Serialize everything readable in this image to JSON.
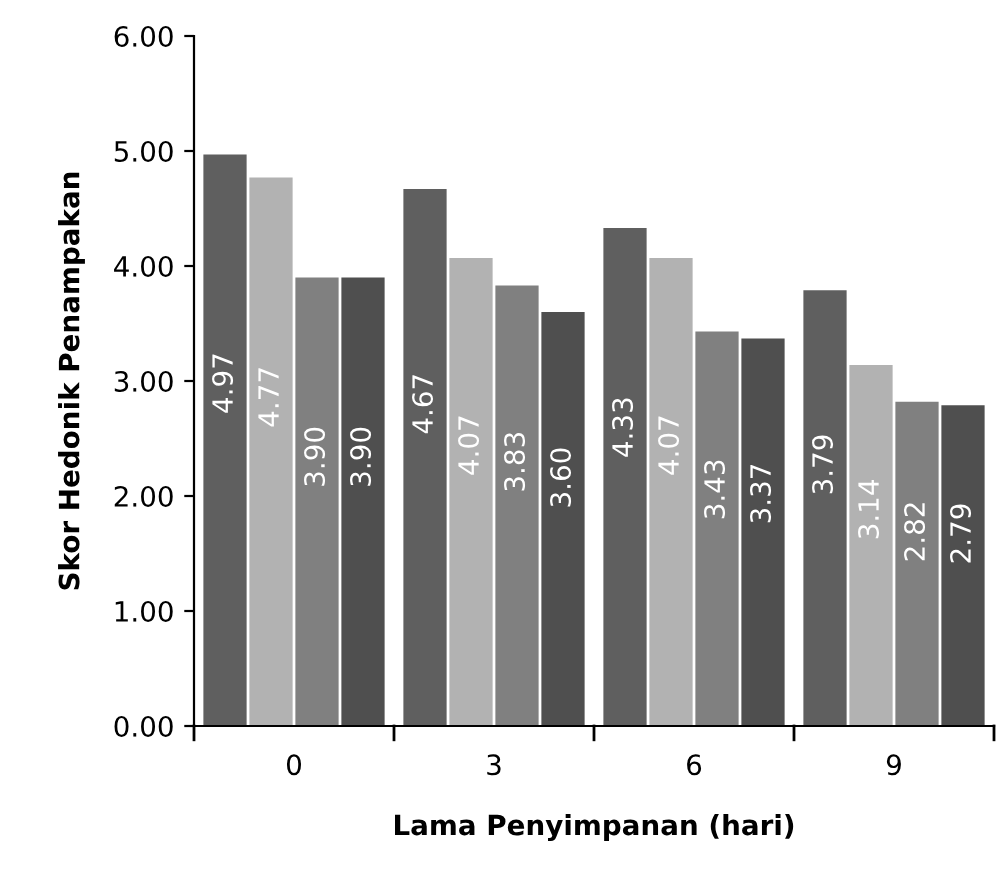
{
  "chart_data": {
    "type": "bar",
    "xlabel": "Lama Penyimpanan (hari)",
    "ylabel": "Skor Hedonik Penampakan",
    "categories": [
      "0",
      "3",
      "6",
      "9"
    ],
    "series": [
      {
        "color": "#5f5f5f",
        "values": [
          4.97,
          4.67,
          4.33,
          3.79
        ],
        "value_labels": [
          "4.97",
          "4.67",
          "4.33",
          "3.79"
        ]
      },
      {
        "color": "#b2b2b2",
        "values": [
          4.77,
          4.07,
          4.07,
          3.14
        ],
        "value_labels": [
          "4.77",
          "4.07",
          "4.07",
          "3.14"
        ]
      },
      {
        "color": "#808080",
        "values": [
          3.9,
          3.83,
          3.43,
          2.82
        ],
        "value_labels": [
          "3.90",
          "3.83",
          "3.43",
          "2.82"
        ]
      },
      {
        "color": "#4f4f4f",
        "values": [
          3.9,
          3.6,
          3.37,
          2.79
        ],
        "value_labels": [
          "3.90",
          "3.60",
          "3.37",
          "2.79"
        ]
      }
    ],
    "ylim": [
      0,
      6
    ],
    "yticks": [
      {
        "value": 0,
        "label": "0.00"
      },
      {
        "value": 1,
        "label": "1.00"
      },
      {
        "value": 2,
        "label": "2.00"
      },
      {
        "value": 3,
        "label": "3.00"
      },
      {
        "value": 4,
        "label": "4.00"
      },
      {
        "value": 5,
        "label": "5.00"
      },
      {
        "value": 6,
        "label": "6.00"
      }
    ],
    "grid": false,
    "legend": false
  }
}
